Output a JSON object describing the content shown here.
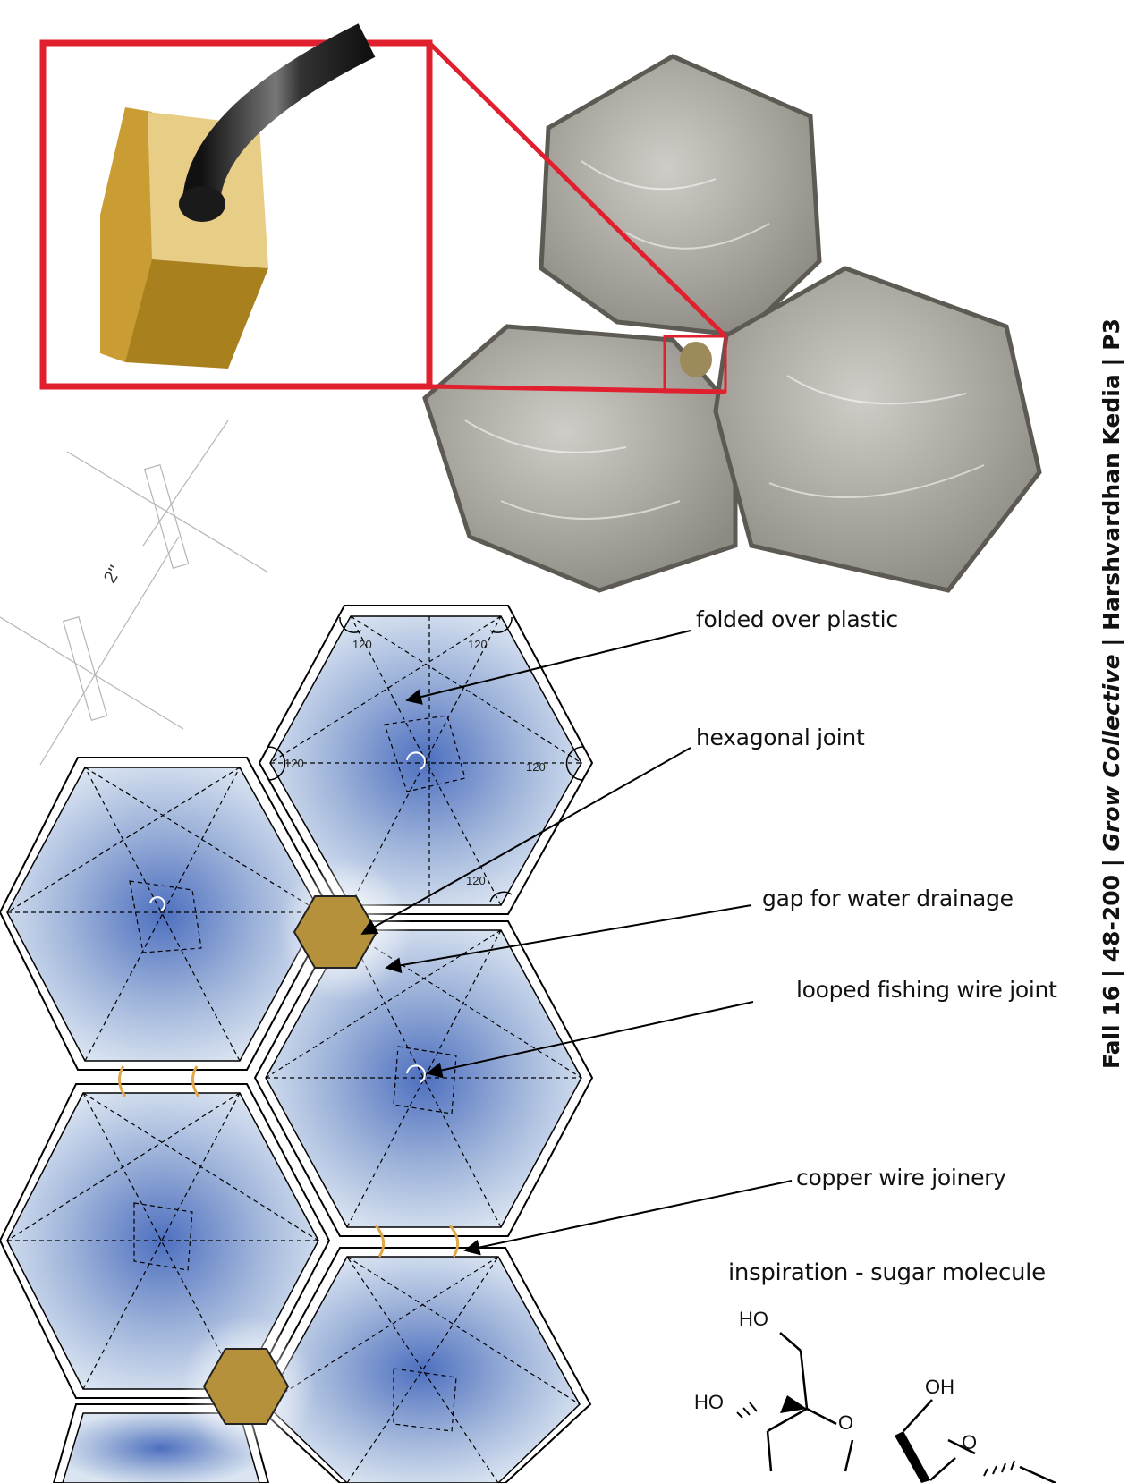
{
  "labels": {
    "folded": "folded over plastic",
    "hex_joint": "hexagonal joint",
    "gap": "gap for water drainage",
    "loop": "looped fishing wire joint",
    "copper": "copper wire joinery",
    "inspiration": "inspiration - sugar molecule"
  },
  "dimension": "2''",
  "angle_label": "120",
  "credit": {
    "course": "Fall 16 | 48-200 | ",
    "project": "Grow Collective",
    "author": " | Harshvardhan Kedia | P3"
  },
  "molecule": {
    "ho1": "HO",
    "ho2": "HO",
    "oh": "OH",
    "ring_o1": "O",
    "ring_o2": "O"
  },
  "colors": {
    "callout_frame": "#e0202e",
    "joint_gold": "#b4913a",
    "panel_blue": "#4d6fbf",
    "panel_light": "#dbe5f2",
    "copper": "#e0a84a",
    "plastic_gray": "#9a978f"
  }
}
